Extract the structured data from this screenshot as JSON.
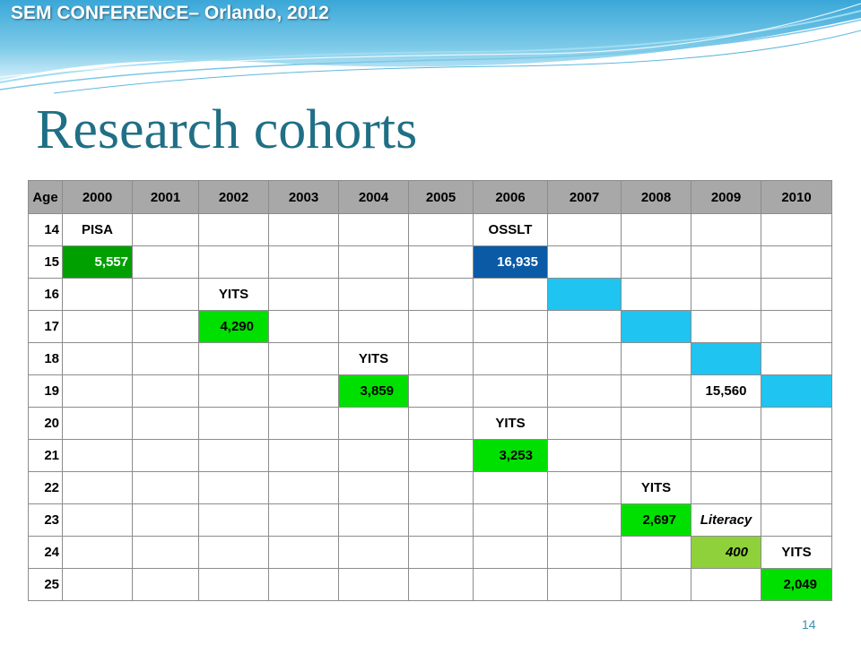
{
  "header": {
    "conference": "SEM CONFERENCE– Orlando, 2012"
  },
  "slide": {
    "title": "Research cohorts",
    "page_number": "14"
  },
  "colors": {
    "dark_green": "#00a000",
    "navy": "#0b5aa5",
    "bright_green": "#00e000",
    "lime": "#8fd13a",
    "cyan": "#1fc4f0",
    "header_gray": "#a8a8a8"
  },
  "table": {
    "headers": [
      "Age",
      "2000",
      "2001",
      "2002",
      "2003",
      "2004",
      "2005",
      "2006",
      "2007",
      "2008",
      "2009",
      "2010"
    ],
    "rows": [
      {
        "age": "14",
        "cells": [
          {
            "text": "PISA"
          },
          {},
          {},
          {},
          {},
          {},
          {
            "text": "OSSLT"
          },
          {},
          {},
          {},
          {}
        ]
      },
      {
        "age": "15",
        "cells": [
          {
            "text": "5,557",
            "fill": "dark_green"
          },
          {},
          {},
          {},
          {},
          {},
          {
            "text": "16,935",
            "fill": "navy"
          },
          {},
          {},
          {},
          {}
        ]
      },
      {
        "age": "16",
        "cells": [
          {},
          {},
          {
            "text": "YITS"
          },
          {},
          {},
          {},
          {},
          {
            "fill": "cyan"
          },
          {},
          {},
          {}
        ]
      },
      {
        "age": "17",
        "cells": [
          {},
          {},
          {
            "text": "4,290",
            "fill": "bright_green"
          },
          {},
          {},
          {},
          {},
          {},
          {
            "fill": "cyan"
          },
          {},
          {}
        ]
      },
      {
        "age": "18",
        "cells": [
          {},
          {},
          {},
          {},
          {
            "text": "YITS"
          },
          {},
          {},
          {},
          {},
          {
            "fill": "cyan"
          },
          {}
        ]
      },
      {
        "age": "19",
        "cells": [
          {},
          {},
          {},
          {},
          {
            "text": "3,859",
            "fill": "bright_green"
          },
          {},
          {},
          {},
          {},
          {
            "text": "15,560"
          },
          {
            "fill": "cyan"
          }
        ]
      },
      {
        "age": "20",
        "cells": [
          {},
          {},
          {},
          {},
          {},
          {},
          {
            "text": "YITS"
          },
          {},
          {},
          {},
          {}
        ]
      },
      {
        "age": "21",
        "cells": [
          {},
          {},
          {},
          {},
          {},
          {},
          {
            "text": "3,253",
            "fill": "bright_green"
          },
          {},
          {},
          {},
          {}
        ]
      },
      {
        "age": "22",
        "cells": [
          {},
          {},
          {},
          {},
          {},
          {},
          {},
          {},
          {
            "text": "YITS"
          },
          {},
          {}
        ]
      },
      {
        "age": "23",
        "cells": [
          {},
          {},
          {},
          {},
          {},
          {},
          {},
          {},
          {
            "text": "2,697",
            "fill": "bright_green"
          },
          {
            "text": "Literacy",
            "style": "italic"
          },
          {}
        ]
      },
      {
        "age": "24",
        "cells": [
          {},
          {},
          {},
          {},
          {},
          {},
          {},
          {},
          {},
          {
            "text": "400",
            "fill": "lime",
            "style": "italic"
          },
          {
            "text": "YITS"
          }
        ]
      },
      {
        "age": "25",
        "cells": [
          {},
          {},
          {},
          {},
          {},
          {},
          {},
          {},
          {},
          {},
          {
            "text": "2,049",
            "fill": "bright_green"
          }
        ]
      }
    ]
  }
}
